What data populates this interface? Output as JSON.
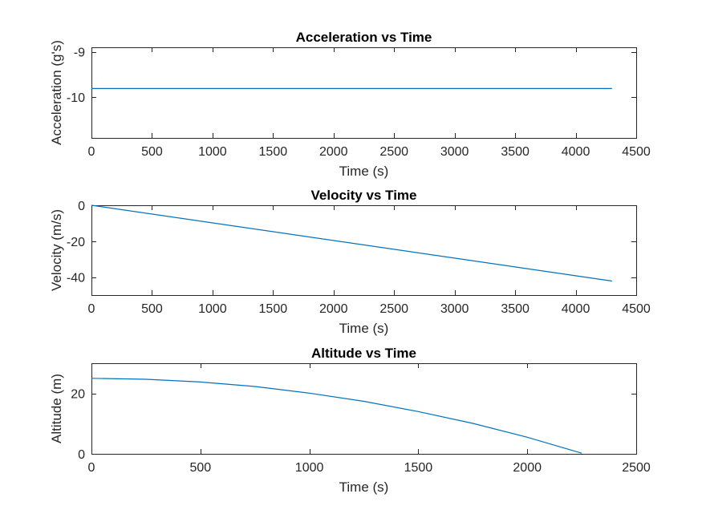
{
  "chart_data": [
    {
      "type": "line",
      "title": "Acceleration vs Time",
      "xlabel": "Time (s)",
      "ylabel": "Acceleration (g's)",
      "xlim": [
        0,
        4500
      ],
      "ylim": [
        -10.9,
        -8.9
      ],
      "xticks": [
        0,
        500,
        1000,
        1500,
        2000,
        2500,
        3000,
        3500,
        4000,
        4500
      ],
      "yticks": [
        -9,
        -10
      ],
      "grid": false,
      "series": [
        {
          "x": [
            0,
            4300
          ],
          "y": [
            -9.81,
            -9.81
          ],
          "color": "#0072BD"
        }
      ]
    },
    {
      "type": "line",
      "title": "Velocity vs Time",
      "xlabel": "Time (s)",
      "ylabel": "Velocity (m/s)",
      "xlim": [
        0,
        4500
      ],
      "ylim": [
        -50,
        0
      ],
      "xticks": [
        0,
        500,
        1000,
        1500,
        2000,
        2500,
        3000,
        3500,
        4000,
        4500
      ],
      "yticks": [
        0,
        -20,
        -40
      ],
      "grid": false,
      "series": [
        {
          "x": [
            0,
            4300
          ],
          "y": [
            0,
            -42.2
          ],
          "color": "#0072BD"
        }
      ]
    },
    {
      "type": "line",
      "title": "Altitude vs Time",
      "xlabel": "Time (s)",
      "ylabel": "Altitude (m)",
      "xlim": [
        0,
        2500
      ],
      "ylim": [
        0,
        30
      ],
      "xticks": [
        0,
        500,
        1000,
        1500,
        2000,
        2500
      ],
      "yticks": [
        0,
        20
      ],
      "grid": false,
      "series": [
        {
          "x": [
            0,
            250,
            500,
            750,
            1000,
            1250,
            1500,
            1750,
            2000,
            2250
          ],
          "y": [
            25,
            24.7,
            23.8,
            22.3,
            20.1,
            17.4,
            14.0,
            10.1,
            5.5,
            0.2
          ],
          "color": "#0072BD"
        }
      ]
    }
  ]
}
